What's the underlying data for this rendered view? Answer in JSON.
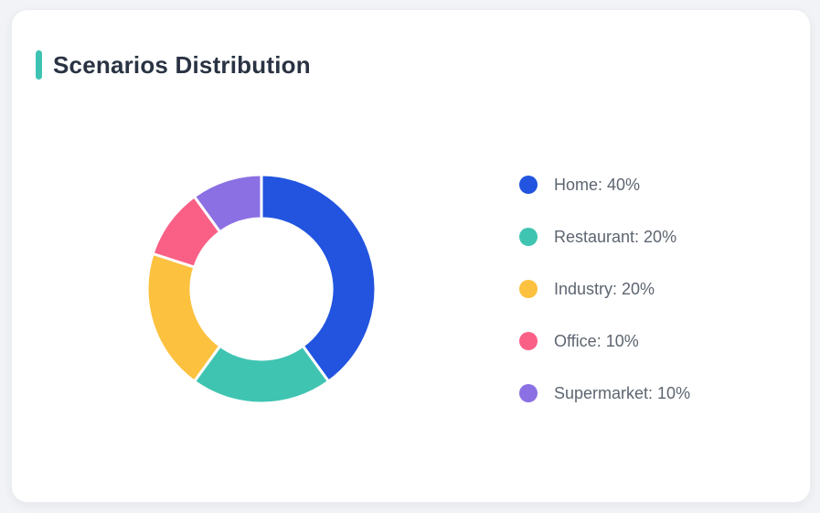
{
  "page": {
    "background": "#f1f3f6"
  },
  "card": {
    "background": "#ffffff",
    "border_color": "#eceef1"
  },
  "header": {
    "title": "Scenarios Distribution",
    "accent_color": "#3ec3b3",
    "title_color": "#2a3343"
  },
  "chart_data": {
    "type": "pie",
    "subtype": "donut",
    "title": "Scenarios Distribution",
    "categories": [
      "Home",
      "Restaurant",
      "Industry",
      "Office",
      "Supermarket"
    ],
    "values": [
      40,
      20,
      20,
      10,
      10
    ],
    "unit": "%",
    "colors": [
      "#2254e0",
      "#40c4b2",
      "#fcc13e",
      "#fa5f86",
      "#8b70e3"
    ],
    "legend_labels": [
      "Home: 40%",
      "Restaurant: 20%",
      "Industry: 20%",
      "Office: 10%",
      "Supermarket: 10%"
    ],
    "legend_position": "right",
    "legend_text_color": "#5d6570",
    "start_angle_deg": 0,
    "direction": "clockwise",
    "outer_radius_px": 125,
    "inner_radius_px": 77,
    "segment_gap_stroke": "#ffffff"
  }
}
